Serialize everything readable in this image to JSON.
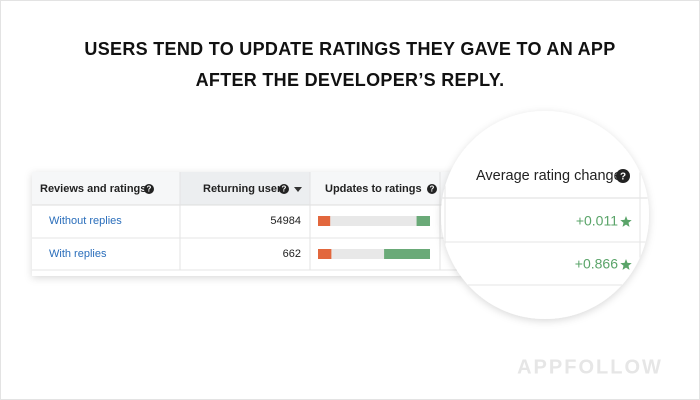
{
  "title": [
    "USERS TEND TO UPDATE RATINGS THEY GAVE TO AN APP",
    "AFTER THE DEVELOPER’S REPLY."
  ],
  "table": {
    "columns": [
      "Reviews and ratings",
      "Returning users",
      "Updates to ratings",
      "Average rating change"
    ],
    "rows": [
      {
        "name": "Without replies",
        "returning_users": 54984,
        "updates": {
          "down": 11,
          "unchanged": 77,
          "up": 12
        },
        "average_rating_change": "+0.011"
      },
      {
        "name": "With replies",
        "returning_users": 662,
        "updates": {
          "down": 12,
          "unchanged": 47,
          "up": 41
        },
        "average_rating_change": "+0.866"
      }
    ],
    "update_colors": {
      "down": "#e2673d",
      "unchanged": "#e8e8e8",
      "up": "#6aaa78"
    }
  },
  "watermark": "APPFOLLOW"
}
